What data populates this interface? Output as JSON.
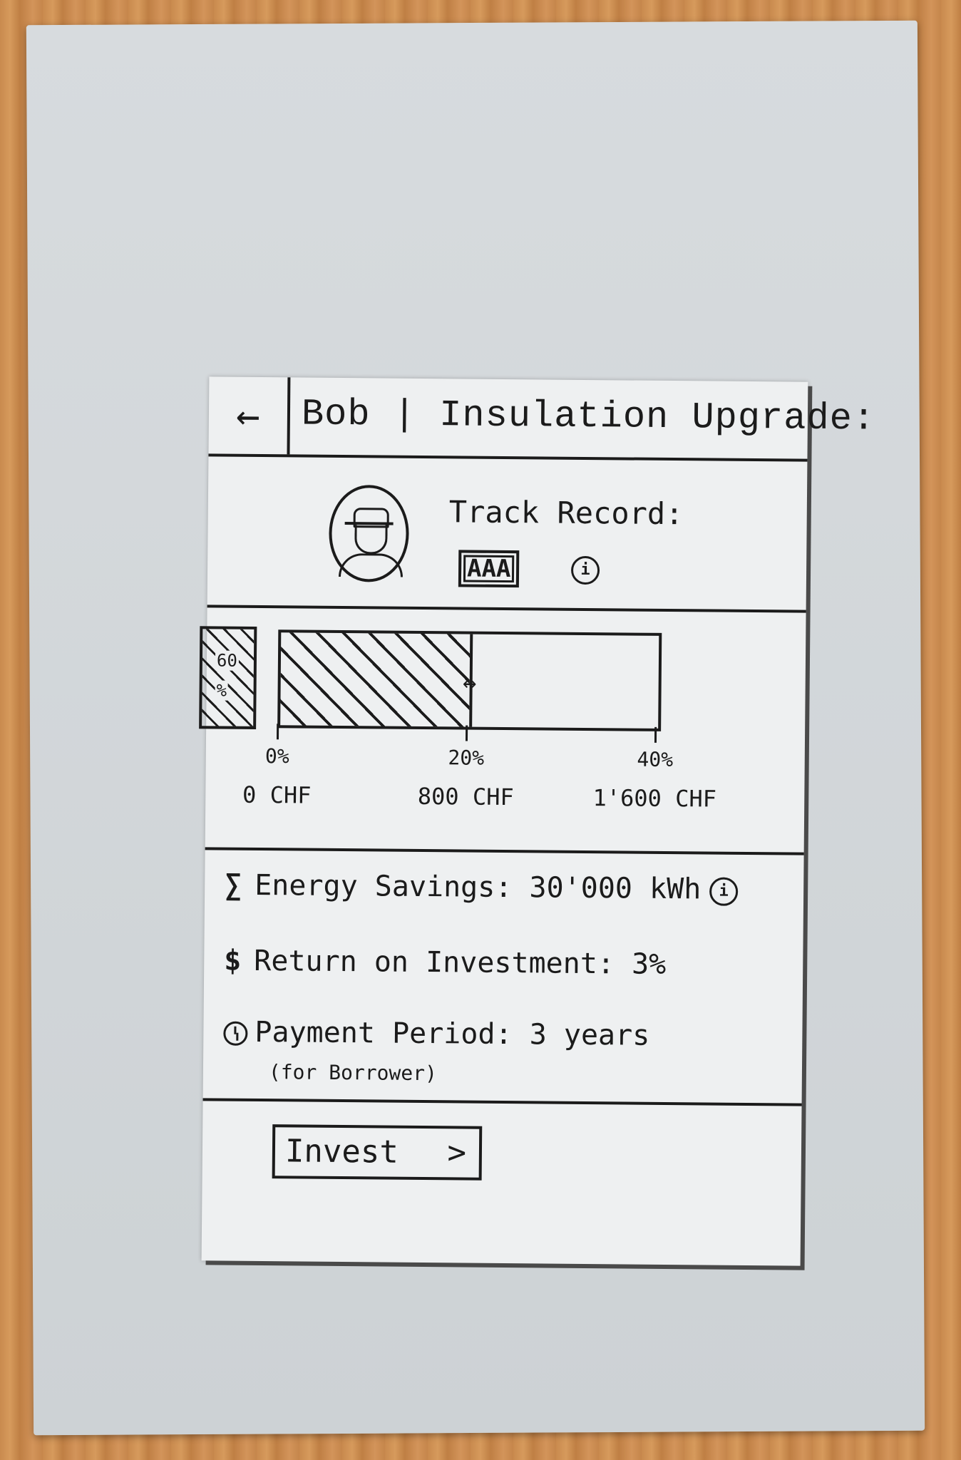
{
  "header": {
    "back_icon": "←",
    "title": "Bob | Insulation Upgrade:"
  },
  "profile": {
    "avatar_icon": "person-with-hat",
    "track_label": "Track Record:",
    "rating": "AAA",
    "info_icon": "i"
  },
  "funding": {
    "partial_label_top": "60",
    "partial_label_bottom": "%",
    "fraction_of_scale": 0.5,
    "handle_icon": "↔",
    "ticks": [
      {
        "percent": "0%",
        "amount": "0 CHF"
      },
      {
        "percent": "20%",
        "amount": "800 CHF"
      },
      {
        "percent": "40%",
        "amount": "1'600 CHF"
      }
    ]
  },
  "metrics": {
    "energy_icon": "∑",
    "energy": "Energy Savings: 30'000 kWh",
    "energy_info_icon": "i",
    "roi_icon": "$",
    "roi": "Return on Investment: 3%",
    "period_icon": "clock",
    "period": "Payment Period: 3 years",
    "period_note": "(for Borrower)"
  },
  "cta": {
    "label": "Invest",
    "chevron": ">"
  }
}
